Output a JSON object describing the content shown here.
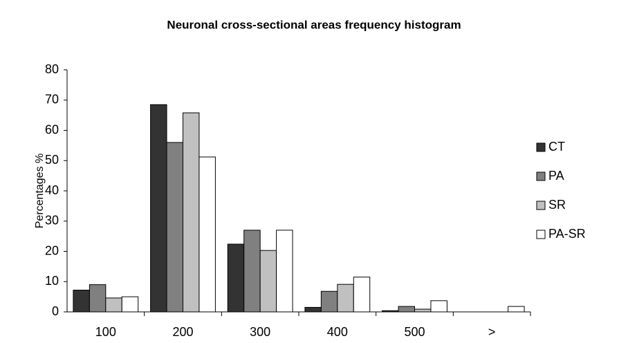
{
  "chart_data": {
    "type": "bar",
    "title": "Neuronal cross-sectional areas frequency histogram",
    "y_label": "Percentages %",
    "categories": [
      "100",
      "200",
      "300",
      "400",
      "500",
      ">"
    ],
    "series": [
      {
        "name": "CT",
        "color": "#333333",
        "values": [
          7.2,
          68.5,
          22.4,
          1.5,
          0.4,
          0
        ]
      },
      {
        "name": "PA",
        "color": "#808080",
        "values": [
          9,
          56,
          27,
          6.8,
          1.8,
          0
        ]
      },
      {
        "name": "SR",
        "color": "#c0c0c0",
        "values": [
          4.6,
          65.8,
          20.3,
          9.1,
          0.9,
          0
        ]
      },
      {
        "name": "PA-SR",
        "color": "#ffffff",
        "values": [
          5,
          51.2,
          27,
          11.5,
          3.7,
          1.8
        ]
      }
    ],
    "ylim": [
      0,
      80
    ],
    "yticks": [
      0,
      10,
      20,
      30,
      40,
      50,
      60,
      70,
      80
    ],
    "legend": "right"
  }
}
